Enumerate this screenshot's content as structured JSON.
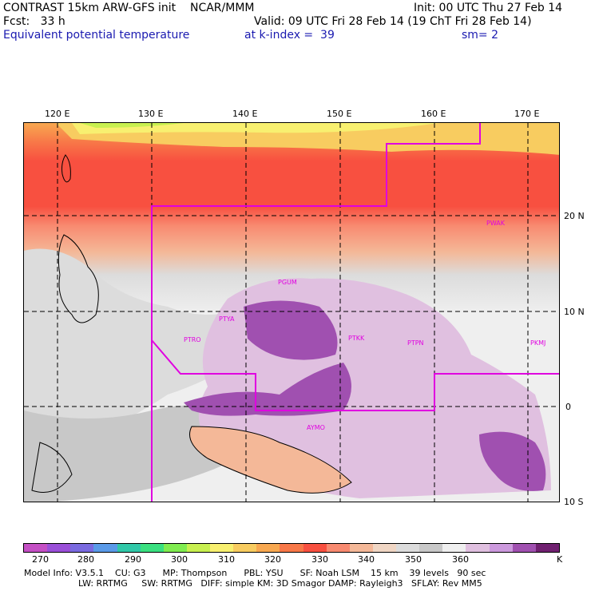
{
  "header": {
    "title": "CONTRAST 15km ARW-GFS init    NCAR/MMM",
    "init": "Init: 00 UTC Thu 27 Feb 14",
    "fcst": "Fcst:   33 h",
    "valid": "Valid: 09 UTC Fri 28 Feb 14 (19 ChT Fri 28 Feb 14)",
    "field": "Equivalent potential temperature",
    "level": "at k-index =  39",
    "smoothing": "sm= 2"
  },
  "axes": {
    "lon_labels": [
      "120 E",
      "130 E",
      "140 E",
      "150 E",
      "160 E",
      "170 E"
    ],
    "lat_labels": [
      "20 N",
      "10 N",
      "0",
      "10 S"
    ]
  },
  "stations": [
    "PGUM",
    "PTYA",
    "PTRO",
    "PTKK",
    "PTPN",
    "PKMJ",
    "PWAK",
    "AYMO"
  ],
  "colorbar": {
    "labels": [
      "270",
      "280",
      "290",
      "300",
      "310",
      "320",
      "330",
      "340",
      "350",
      "360"
    ],
    "unit": "K",
    "colors": [
      "#c44fc4",
      "#9a4fd8",
      "#7a6ae0",
      "#5a9ae8",
      "#30c8a8",
      "#3ae080",
      "#80ec50",
      "#c8f050",
      "#f8f070",
      "#f8cc60",
      "#f8a850",
      "#f87848",
      "#f85040",
      "#f88a70",
      "#f4b898",
      "#f0d6c4",
      "#dcdcdc",
      "#c8c8c8",
      "#efefef",
      "#e0c0e0",
      "#cc99dd",
      "#a050b0",
      "#702070"
    ]
  },
  "footer": {
    "line1": "Model Info: V3.5.1    CU: G3      MP: Thompson      PBL: YSU      SF: Noah LSM    15 km    39 levels   90 sec",
    "line2": "LW: RRTMG     SW: RRTMG   DIFF: simple KM: 3D Smagor DAMP: Rayleigh3   SFLAY: Rev MM5"
  }
}
